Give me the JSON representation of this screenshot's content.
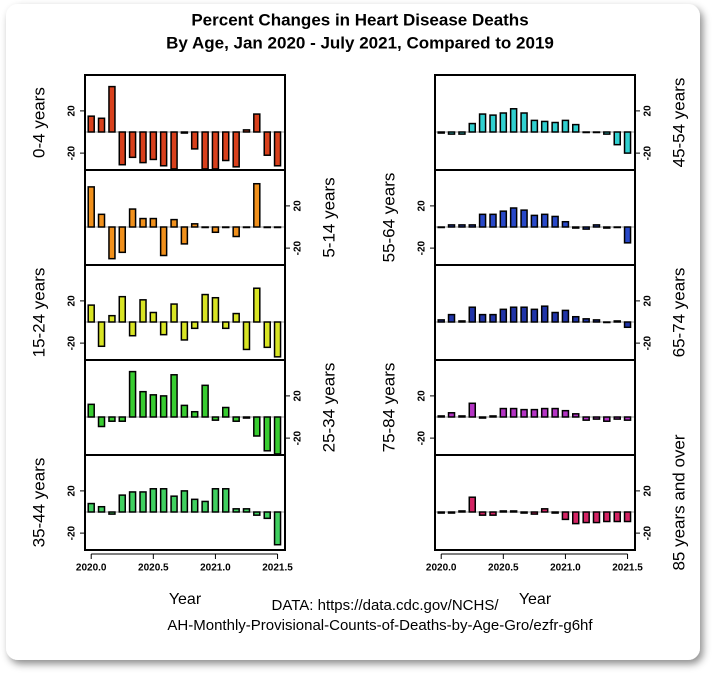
{
  "title": [
    "Percent Changes in Heart Disease Deaths",
    "By Age, Jan 2020 - July 2021, Compared to 2019"
  ],
  "source": [
    "DATA: https://data.cdc.gov/NCHS/",
    "AH-Monthly-Provisional-Counts-of-Deaths-by-Age-Gro/ezfr-g6hf"
  ],
  "chart_data": [
    {
      "type": "bar",
      "label": "0-4 years",
      "side": "left",
      "color": "#d8401c",
      "x": [
        2020,
        2020.083,
        2020.167,
        2020.25,
        2020.333,
        2020.417,
        2020.5,
        2020.583,
        2020.667,
        2020.75,
        2020.833,
        2020.917,
        2021,
        2021.083,
        2021.167,
        2021.25,
        2021.333,
        2021.417,
        2021.5
      ],
      "values": [
        15,
        13,
        43,
        -31,
        -24,
        -29,
        -26,
        -32,
        -35,
        -1,
        -16,
        -35,
        -35,
        -27,
        -33,
        2,
        17,
        -22,
        -32
      ],
      "xlim": [
        2019.95,
        2021.56
      ],
      "ylim": [
        -36,
        54
      ],
      "yticks": [
        -20,
        20
      ]
    },
    {
      "type": "bar",
      "label": "5-14 years",
      "side": "right",
      "color": "#f0901c",
      "x": [
        2020,
        2020.083,
        2020.167,
        2020.25,
        2020.333,
        2020.417,
        2020.5,
        2020.583,
        2020.667,
        2020.75,
        2020.833,
        2020.917,
        2021,
        2021.083,
        2021.167,
        2021.25,
        2021.333,
        2021.417,
        2021.5
      ],
      "values": [
        38,
        12,
        -30,
        -24,
        17,
        8,
        8,
        -27,
        7,
        -16,
        3,
        0,
        -5,
        0,
        -9,
        0,
        41,
        0,
        0
      ],
      "xlim": [
        2019.95,
        2021.56
      ],
      "ylim": [
        -36,
        54
      ],
      "yticks": [
        -20,
        20
      ]
    },
    {
      "type": "bar",
      "label": "15-24 years",
      "side": "left",
      "color": "#d8e424",
      "x": [
        2020,
        2020.083,
        2020.167,
        2020.25,
        2020.333,
        2020.417,
        2020.5,
        2020.583,
        2020.667,
        2020.75,
        2020.833,
        2020.917,
        2021,
        2021.083,
        2021.167,
        2021.25,
        2021.333,
        2021.417,
        2021.5
      ],
      "values": [
        16,
        -23,
        6,
        24,
        -13,
        21,
        9,
        -12,
        17,
        -17,
        -6,
        26,
        23,
        -6,
        8,
        -26,
        32,
        -24,
        -33
      ],
      "xlim": [
        2019.95,
        2021.56
      ],
      "ylim": [
        -36,
        54
      ],
      "yticks": [
        -20,
        20
      ]
    },
    {
      "type": "bar",
      "label": "25-34 years",
      "side": "right",
      "color": "#38cc30",
      "x": [
        2020,
        2020.083,
        2020.167,
        2020.25,
        2020.333,
        2020.417,
        2020.5,
        2020.583,
        2020.667,
        2020.75,
        2020.833,
        2020.917,
        2021,
        2021.083,
        2021.167,
        2021.25,
        2021.333,
        2021.417,
        2021.5
      ],
      "values": [
        12,
        -9,
        -4,
        -4,
        43,
        24,
        21,
        20,
        40,
        11,
        5,
        30,
        -3,
        9,
        -4,
        -1,
        -18,
        -32,
        -35
      ],
      "xlim": [
        2019.95,
        2021.56
      ],
      "ylim": [
        -36,
        54
      ],
      "yticks": [
        -20,
        20
      ]
    },
    {
      "type": "bar",
      "label": "35-44 years",
      "side": "left",
      "color": "#40d060",
      "x": [
        2020,
        2020.083,
        2020.167,
        2020.25,
        2020.333,
        2020.417,
        2020.5,
        2020.583,
        2020.667,
        2020.75,
        2020.833,
        2020.917,
        2021,
        2021.083,
        2021.167,
        2021.25,
        2021.333,
        2021.417,
        2021.5
      ],
      "values": [
        8,
        5,
        -2,
        16,
        19,
        19,
        22,
        22,
        15,
        20,
        12,
        10,
        22,
        22,
        3,
        3,
        -3,
        -6,
        -31
      ],
      "xlim": [
        2019.95,
        2021.56
      ],
      "ylim": [
        -36,
        54
      ],
      "yticks": [
        -20,
        20
      ],
      "xticks": [
        {
          "value": 2020,
          "label": "2020.0"
        },
        {
          "value": 2020.5,
          "label": "2020.5"
        },
        {
          "value": 2021,
          "label": "2021.0"
        },
        {
          "value": 2021.5,
          "label": "2021.5"
        }
      ],
      "xlabel": "Year"
    },
    {
      "type": "bar",
      "label": "45-54 years",
      "side": "right",
      "color": "#30d0d0",
      "x": [
        2020,
        2020.083,
        2020.167,
        2020.25,
        2020.333,
        2020.417,
        2020.5,
        2020.583,
        2020.667,
        2020.75,
        2020.833,
        2020.917,
        2021,
        2021.083,
        2021.167,
        2021.25,
        2021.333,
        2021.417,
        2021.5
      ],
      "values": [
        -1,
        -2,
        -2,
        8,
        17,
        16,
        18,
        22,
        18,
        11,
        10,
        9,
        11,
        7,
        0,
        0,
        -2,
        -12,
        -20
      ],
      "xlim": [
        2019.95,
        2021.56
      ],
      "ylim": [
        -36,
        54
      ],
      "yticks": [
        -20,
        20
      ]
    },
    {
      "type": "bar",
      "label": "55-64 years",
      "side": "left",
      "color": "#2848c8",
      "x": [
        2020,
        2020.083,
        2020.167,
        2020.25,
        2020.333,
        2020.417,
        2020.5,
        2020.583,
        2020.667,
        2020.75,
        2020.833,
        2020.917,
        2021,
        2021.083,
        2021.167,
        2021.25,
        2021.333,
        2021.417,
        2021.5
      ],
      "values": [
        0,
        2,
        2,
        2,
        12,
        12,
        15,
        18,
        16,
        11,
        12,
        10,
        5,
        -1,
        -2,
        2,
        -1,
        0,
        -15
      ],
      "xlim": [
        2019.95,
        2021.56
      ],
      "ylim": [
        -36,
        54
      ],
      "yticks": [
        -20,
        20
      ]
    },
    {
      "type": "bar",
      "label": "65-74 years",
      "side": "right",
      "color": "#2034a8",
      "x": [
        2020,
        2020.083,
        2020.167,
        2020.25,
        2020.333,
        2020.417,
        2020.5,
        2020.583,
        2020.667,
        2020.75,
        2020.833,
        2020.917,
        2021,
        2021.083,
        2021.167,
        2021.25,
        2021.333,
        2021.417,
        2021.5
      ],
      "values": [
        2,
        7,
        1,
        14,
        7,
        7,
        12,
        14,
        14,
        12,
        15,
        9,
        11,
        5,
        3,
        2,
        0,
        1,
        -5
      ],
      "xlim": [
        2019.95,
        2021.56
      ],
      "ylim": [
        -36,
        54
      ],
      "yticks": [
        -20,
        20
      ]
    },
    {
      "type": "bar",
      "label": "75-84 years",
      "side": "left",
      "color": "#b434c4",
      "x": [
        2020,
        2020.083,
        2020.167,
        2020.25,
        2020.333,
        2020.417,
        2020.5,
        2020.583,
        2020.667,
        2020.75,
        2020.833,
        2020.917,
        2021,
        2021.083,
        2021.167,
        2021.25,
        2021.333,
        2021.417,
        2021.5
      ],
      "values": [
        1,
        4,
        1,
        13,
        -1,
        1,
        8,
        8,
        7,
        7,
        8,
        8,
        6,
        3,
        -3,
        -2,
        -4,
        -2,
        -3
      ],
      "xlim": [
        2019.95,
        2021.56
      ],
      "ylim": [
        -36,
        54
      ],
      "yticks": [
        -20,
        20
      ]
    },
    {
      "type": "bar",
      "label": "85 years and over",
      "side": "right",
      "color": "#d42464",
      "x": [
        2020,
        2020.083,
        2020.167,
        2020.25,
        2020.333,
        2020.417,
        2020.5,
        2020.583,
        2020.667,
        2020.75,
        2020.833,
        2020.917,
        2021,
        2021.083,
        2021.167,
        2021.25,
        2021.333,
        2021.417,
        2021.5
      ],
      "values": [
        -1,
        -1,
        1,
        14,
        -3,
        -3,
        1,
        1,
        -1,
        -2,
        3,
        -1,
        -7,
        -11,
        -10,
        -10,
        -9,
        -9,
        -9
      ],
      "xlim": [
        2019.95,
        2021.56
      ],
      "ylim": [
        -36,
        54
      ],
      "yticks": [
        -20,
        20
      ],
      "xticks": [
        {
          "value": 2020,
          "label": "2020.0"
        },
        {
          "value": 2020.5,
          "label": "2020.5"
        },
        {
          "value": 2021,
          "label": "2021.0"
        },
        {
          "value": 2021.5,
          "label": "2021.5"
        }
      ],
      "xlabel": "Year"
    }
  ]
}
